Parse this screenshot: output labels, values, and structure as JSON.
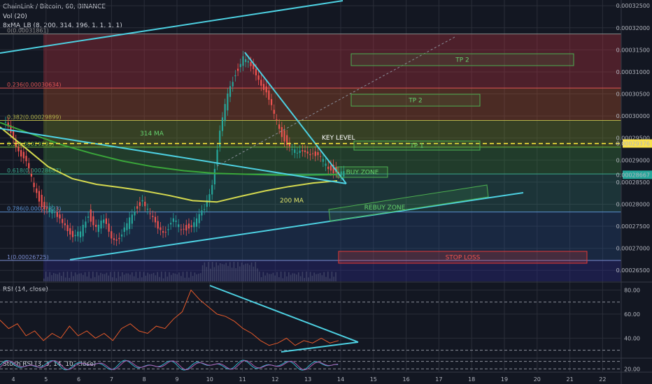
{
  "header": {
    "symbol_line": "ChainLink / Bitcoin, 60, BINANCE",
    "volume_line": "Vol (20)",
    "ma_line": "8xMA_LB (8, 200, 314, 196, 1, 1, 1, 1)"
  },
  "colors": {
    "background": "#131722",
    "candle_up": "#26a69a",
    "candle_down": "#ef5350",
    "trendline": "#4dd0e1",
    "ma200": "#d4d94f",
    "ma314": "#3aa63a",
    "key_level": "#ffeb3b",
    "rsi_line": "#e65a2a",
    "stoch_k": "#2fb3c9",
    "stoch_d": "#b05ab0"
  },
  "chart_data": [
    {
      "type": "line",
      "title": "ChainLink / Bitcoin, 60, BINANCE",
      "y_axis_ticks": [
        "0.00032500",
        "0.00032000",
        "0.00031500",
        "0.00031000",
        "0.00030500",
        "0.00030000",
        "0.00029500",
        "0.00029000",
        "0.00028500",
        "0.00028000",
        "0.00027500",
        "0.00027000",
        "0.00026500"
      ],
      "ylim": [
        0.0002625,
        0.0003263
      ],
      "x_axis_ticks": [
        "4",
        "5",
        "6",
        "7",
        "8",
        "9",
        "10",
        "11",
        "12",
        "13",
        "14",
        "15",
        "16",
        "17",
        "18",
        "19",
        "20",
        "21",
        "22"
      ],
      "price_close": [
        0.0002965,
        0.0002925,
        0.000289,
        0.000284,
        0.00028,
        0.0002785,
        0.000277,
        0.000276,
        0.000272,
        0.0002735,
        0.000278,
        0.0002745,
        0.000276,
        0.000273,
        0.000272,
        0.000275,
        0.000279,
        0.000281,
        0.000277,
        0.000275,
        0.000274,
        0.000276,
        0.0002745,
        0.000275,
        0.000276,
        0.000279,
        0.000285,
        0.000296,
        0.000305,
        0.00031,
        0.000313,
        0.000311,
        0.000309,
        0.000305,
        0.0003,
        0.000296,
        0.000293,
        0.000291,
        0.0002925,
        0.0002915,
        0.00029,
        0.0002885,
        0.0002875,
        0.0002867
      ],
      "series": [
        {
          "name": "314 MA",
          "values": [
            0.0002985,
            0.000296,
            0.0002935,
            0.0002915,
            0.0002898,
            0.0002885,
            0.0002876,
            0.000287,
            0.0002868,
            0.0002866,
            0.0002866,
            0.0002867
          ]
        },
        {
          "name": "200 MA",
          "values": [
            0.0002975,
            0.000293,
            0.0002885,
            0.0002858,
            0.0002845,
            0.0002838,
            0.000283,
            0.000282,
            0.0002808,
            0.0002805,
            0.0002818,
            0.000283,
            0.000284,
            0.0002848,
            0.0002853
          ]
        }
      ],
      "current_price_label": "0.00029376",
      "last_price_label": "0.00028667",
      "fib_levels": [
        {
          "label": "0(0.00031861)",
          "value": 0.00031861
        },
        {
          "label": "0.236(0.00030634)",
          "value": 0.00030634
        },
        {
          "label": "0.382(0.00029899)",
          "value": 0.00029899
        },
        {
          "label": "0.5(0.00029293)",
          "value": 0.00029293
        },
        {
          "label": "0.618(0.00028687)",
          "value": 0.00028687
        },
        {
          "label": "0.786(0.00027823)",
          "value": 0.00027823
        },
        {
          "label": "1(0.00026725)",
          "value": 0.00026725
        }
      ],
      "annotations": {
        "tp2_upper": "TP 2",
        "tp2_lower": "TP 2",
        "tp1": "TP 1",
        "key_level": "KEY LEVEL",
        "buy_zone": "BUY ZONE",
        "rebuy_zone": "REBUY ZONE",
        "stop_loss": "STOP LOSS",
        "ma314_label": "314 MA",
        "ma200_label": "200 MA"
      }
    },
    {
      "type": "line",
      "title": "RSI (14, close)",
      "y_axis_ticks": [
        "80.00",
        "60.00",
        "40.00"
      ],
      "ylim": [
        24,
        86
      ],
      "series": [
        {
          "name": "RSI",
          "values": [
            55,
            48,
            52,
            42,
            46,
            38,
            44,
            40,
            50,
            42,
            46,
            40,
            44,
            38,
            48,
            52,
            46,
            44,
            50,
            48,
            56,
            62,
            80,
            72,
            66,
            60,
            58,
            54,
            48,
            44,
            38,
            34,
            36,
            40,
            34,
            38,
            36,
            40,
            36,
            38
          ]
        }
      ]
    },
    {
      "type": "line",
      "title": "Stoch RSI (3, 3, 14, 10, close)",
      "y_axis_ticks": [
        "20.00"
      ],
      "ylim": [
        0,
        100
      ]
    }
  ]
}
